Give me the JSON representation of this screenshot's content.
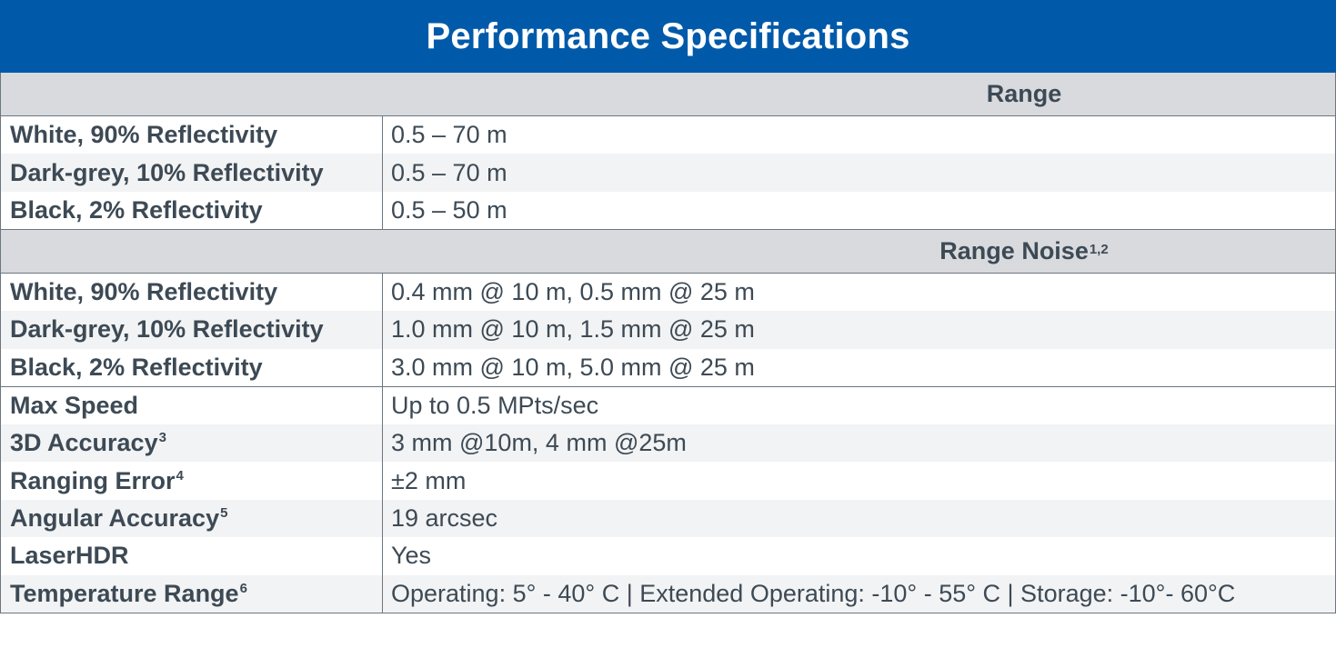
{
  "title": "Performance Specifications",
  "colors": {
    "title_bg": "#005aa9",
    "section_bg": "#d8dadd",
    "text": "#3d4a55"
  },
  "range": {
    "heading": "Range",
    "rows": [
      {
        "label": "White, 90% Reflectivity",
        "value": "0.5 – 70 m"
      },
      {
        "label": "Dark-grey, 10% Reflectivity",
        "value": "0.5 – 70 m"
      },
      {
        "label": "Black, 2% Reflectivity",
        "value": "0.5 – 50 m"
      }
    ]
  },
  "range_noise": {
    "heading": "Range Noise",
    "heading_sup": "1,2",
    "rows": [
      {
        "label": "White, 90% Reflectivity",
        "value": "0.4  mm @ 10 m, 0.5 mm @ 25 m"
      },
      {
        "label": "Dark-grey, 10% Reflectivity",
        "value": "1.0 mm @ 10 m, 1.5 mm @ 25 m"
      },
      {
        "label": "Black, 2% Reflectivity",
        "value": "3.0 mm @ 10 m, 5.0 mm @ 25 m"
      }
    ]
  },
  "other": [
    {
      "label": "Max Speed",
      "sup": "",
      "value": "Up to 0.5 MPts/sec"
    },
    {
      "label": "3D Accuracy",
      "sup": "3",
      "value": "3 mm @10m, 4 mm @25m"
    },
    {
      "label": "Ranging Error",
      "sup": "4",
      "value": "±2 mm"
    },
    {
      "label": "Angular Accuracy",
      "sup": "5",
      "value": "19 arcsec"
    },
    {
      "label": "LaserHDR",
      "sup": "",
      "value": "Yes"
    },
    {
      "label": "Temperature Range",
      "sup": "6",
      "value": "Operating: 5° - 40° C | Extended Operating: -10° - 55° C | Storage: -10°- 60°C"
    }
  ]
}
